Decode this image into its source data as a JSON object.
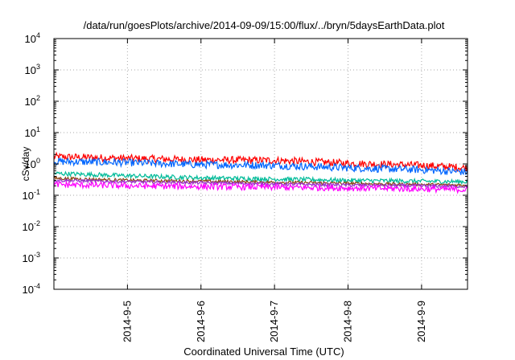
{
  "chart_data": {
    "type": "line",
    "title": "/data/run/goesPlots/archive/2014-09-09/15:00/flux/../bryn/5daysEarthData.plot",
    "xlabel": "Coordinated Universal Time (UTC)",
    "ylabel": "cSv/day",
    "y_scale": "log",
    "ylim": [
      0.0001,
      10000
    ],
    "xlim": [
      "2014-09-04T00:00",
      "2014-09-09T15:00"
    ],
    "grid": true,
    "x_ticks": [
      "2014-9-5",
      "2014-9-6",
      "2014-9-7",
      "2014-9-8",
      "2014-9-9"
    ],
    "y_ticks": [
      {
        "base": "10",
        "exp": "-4",
        "value": 0.0001
      },
      {
        "base": "10",
        "exp": "-3",
        "value": 0.001
      },
      {
        "base": "10",
        "exp": "-2",
        "value": 0.01
      },
      {
        "base": "10",
        "exp": "-1",
        "value": 0.1
      },
      {
        "base": "10",
        "exp": "0",
        "value": 1
      },
      {
        "base": "10",
        "exp": "1",
        "value": 10
      },
      {
        "base": "10",
        "exp": "2",
        "value": 100
      },
      {
        "base": "10",
        "exp": "3",
        "value": 1000
      },
      {
        "base": "10",
        "exp": "4",
        "value": 10000
      }
    ],
    "series": [
      {
        "color": "#ff0000",
        "noise": 0.12,
        "x": [
          "2014-09-04T00:00",
          "2014-09-05T00:00",
          "2014-09-06T00:00",
          "2014-09-07T00:00",
          "2014-09-08T00:00",
          "2014-09-09T00:00",
          "2014-09-09T15:00"
        ],
        "values": [
          1.7,
          1.5,
          1.35,
          1.3,
          1.05,
          0.9,
          0.75
        ]
      },
      {
        "color": "#0066ff",
        "noise": 0.12,
        "x": [
          "2014-09-04T00:00",
          "2014-09-05T00:00",
          "2014-09-06T00:00",
          "2014-09-07T00:00",
          "2014-09-08T00:00",
          "2014-09-09T00:00",
          "2014-09-09T15:00"
        ],
        "values": [
          1.2,
          1.1,
          0.95,
          0.9,
          0.75,
          0.65,
          0.55
        ]
      },
      {
        "color": "#00bb99",
        "noise": 0.07,
        "x": [
          "2014-09-04T00:00",
          "2014-09-05T00:00",
          "2014-09-06T00:00",
          "2014-09-07T00:00",
          "2014-09-08T00:00",
          "2014-09-09T00:00",
          "2014-09-09T15:00"
        ],
        "values": [
          0.5,
          0.42,
          0.36,
          0.33,
          0.3,
          0.28,
          0.27
        ]
      },
      {
        "color": "#8b4513",
        "noise": 0.05,
        "x": [
          "2014-09-04T00:00",
          "2014-09-05T00:00",
          "2014-09-06T00:00",
          "2014-09-07T00:00",
          "2014-09-08T00:00",
          "2014-09-09T00:00",
          "2014-09-09T15:00"
        ],
        "values": [
          0.35,
          0.3,
          0.28,
          0.26,
          0.24,
          0.22,
          0.21
        ]
      },
      {
        "color": "#9933cc",
        "noise": 0.05,
        "x": [
          "2014-09-04T00:00",
          "2014-09-05T00:00",
          "2014-09-06T00:00",
          "2014-09-07T00:00",
          "2014-09-08T00:00",
          "2014-09-09T00:00",
          "2014-09-09T15:00"
        ],
        "values": [
          0.3,
          0.27,
          0.25,
          0.23,
          0.21,
          0.2,
          0.19
        ]
      },
      {
        "color": "#ff00ff",
        "noise": 0.1,
        "x": [
          "2014-09-04T00:00",
          "2014-09-05T00:00",
          "2014-09-06T00:00",
          "2014-09-07T00:00",
          "2014-09-08T00:00",
          "2014-09-09T00:00",
          "2014-09-09T15:00"
        ],
        "values": [
          0.22,
          0.2,
          0.19,
          0.18,
          0.17,
          0.16,
          0.15
        ]
      }
    ]
  }
}
